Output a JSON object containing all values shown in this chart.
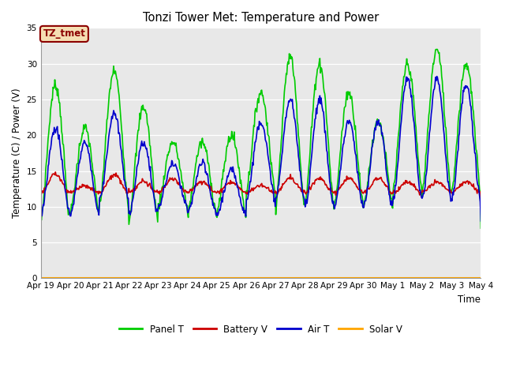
{
  "title": "Tonzi Tower Met: Temperature and Power",
  "xlabel": "Time",
  "ylabel": "Temperature (C) / Power (V)",
  "ylim": [
    0,
    35
  ],
  "yticks": [
    0,
    5,
    10,
    15,
    20,
    25,
    30,
    35
  ],
  "xtick_labels": [
    "Apr 19",
    "Apr 20",
    "Apr 21",
    "Apr 22",
    "Apr 23",
    "Apr 24",
    "Apr 25",
    "Apr 26",
    "Apr 27",
    "Apr 28",
    "Apr 29",
    "Apr 30",
    "May 1",
    "May 2",
    "May 3",
    "May 4"
  ],
  "legend_labels": [
    "Panel T",
    "Battery V",
    "Air T",
    "Solar V"
  ],
  "legend_colors": [
    "#00cc00",
    "#cc0000",
    "#0000cc",
    "#ffa500"
  ],
  "annotation_text": "TZ_tmet",
  "annotation_bg": "#f5deb3",
  "annotation_border": "#8b0000",
  "panel_t_color": "#00cc00",
  "battery_v_color": "#cc0000",
  "air_t_color": "#0000cc",
  "solar_v_color": "#ffa500",
  "fig_bg_color": "#ffffff",
  "plot_bg_color": "#e8e8e8",
  "grid_color": "#ffffff",
  "figsize": [
    6.4,
    4.8
  ],
  "dpi": 100
}
